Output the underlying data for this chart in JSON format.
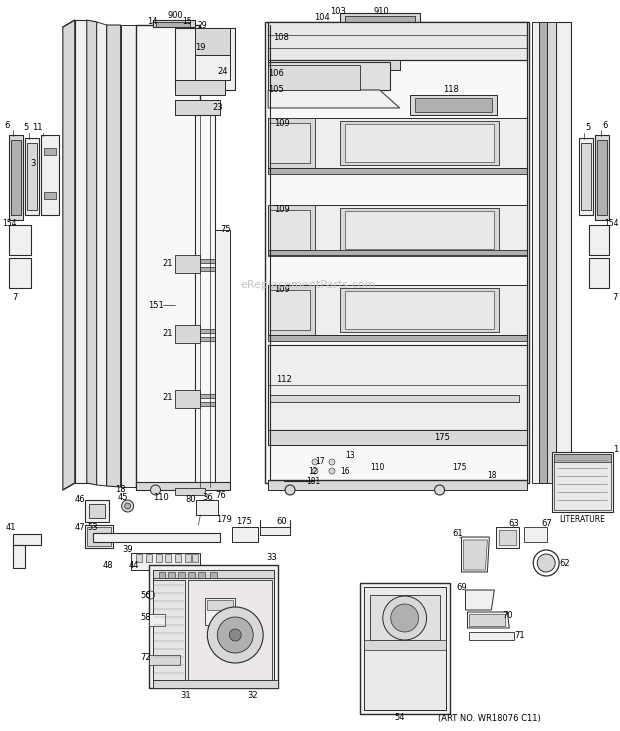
{
  "bg": "#ffffff",
  "lc": "#2a2a2a",
  "fc_white": "#ffffff",
  "fc_light": "#f0f0f0",
  "fc_mid": "#d8d8d8",
  "fc_dark": "#b0b0b0",
  "fc_darker": "#888888",
  "watermark": "eReplacementParts.com",
  "art_no": "(ART NO. WR18076 C11)",
  "literature": "LITERATURE"
}
